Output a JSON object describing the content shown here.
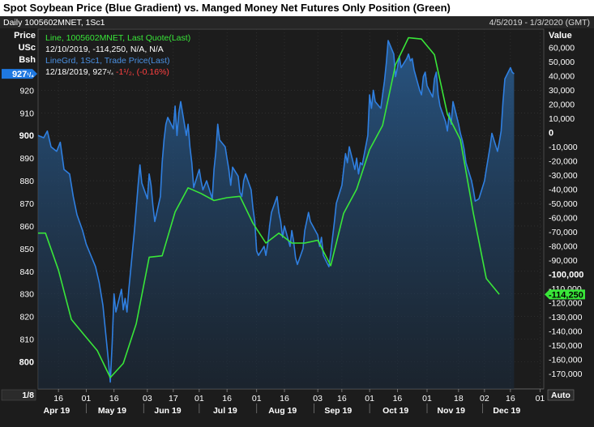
{
  "page_title": "Spot Soybean Price (Blue Gradient) vs. Manged Money Net Futures Only Position (Green)",
  "header": {
    "left": "Daily 1005602MNET, 1Sc1",
    "right": "4/5/2019 - 1/3/2020 (GMT)"
  },
  "left_axis": {
    "label_line1": "Price",
    "label_line2": "USc",
    "label_line3": "Bsh"
  },
  "right_axis": {
    "label": "Value"
  },
  "legend": [
    {
      "text": "Line, 1005602MNET, Last Quote(Last)",
      "color": "#39e639"
    },
    {
      "text": "12/10/2019, -114,250, N/A, N/A",
      "color": "#ffffff"
    },
    {
      "text": "LineGrd, 1Sc1, Trade Price(Last)",
      "color": "#4a90e2"
    },
    {
      "text_date": "12/18/2019, 927",
      "text_frac": "¹/₄",
      "text_chg": " -1¹/₂, (-0.16%)",
      "color_date": "#ffffff",
      "color_chg": "#ff4040"
    }
  ],
  "last_price_badge": {
    "main": "927",
    "frac": "¹/₄"
  },
  "last_value_badge": "-114,250",
  "corner_left": "1/8",
  "corner_right": "Auto",
  "colors": {
    "background": "#1c1c1c",
    "price_line": "#2f7fe0",
    "price_fill": "#1f3f63",
    "position_line": "#39e639",
    "grid": "#3a3a3a",
    "axis_text": "#ffffff"
  },
  "chart_data": {
    "type": "line",
    "x_domain": [
      "2019-04-05",
      "2020-01-03"
    ],
    "x_day_labels": [
      {
        "label": "16",
        "date": "2019-04-16"
      },
      {
        "label": "01",
        "date": "2019-05-01"
      },
      {
        "label": "16",
        "date": "2019-05-16"
      },
      {
        "label": "03",
        "date": "2019-06-03"
      },
      {
        "label": "17",
        "date": "2019-06-17"
      },
      {
        "label": "01",
        "date": "2019-07-01"
      },
      {
        "label": "16",
        "date": "2019-07-16"
      },
      {
        "label": "01",
        "date": "2019-08-01"
      },
      {
        "label": "16",
        "date": "2019-08-16"
      },
      {
        "label": "03",
        "date": "2019-09-03"
      },
      {
        "label": "16",
        "date": "2019-09-16"
      },
      {
        "label": "01",
        "date": "2019-10-01"
      },
      {
        "label": "16",
        "date": "2019-10-16"
      },
      {
        "label": "01",
        "date": "2019-11-01"
      },
      {
        "label": "18",
        "date": "2019-11-18"
      },
      {
        "label": "02",
        "date": "2019-12-02"
      },
      {
        "label": "16",
        "date": "2019-12-16"
      },
      {
        "label": "01",
        "date": "2020-01-01"
      }
    ],
    "x_month_labels": [
      {
        "label": "Apr 19",
        "date": "2019-04-15"
      },
      {
        "label": "May 19",
        "date": "2019-05-15"
      },
      {
        "label": "Jun 19",
        "date": "2019-06-14"
      },
      {
        "label": "Jul 19",
        "date": "2019-07-15"
      },
      {
        "label": "Aug 19",
        "date": "2019-08-15"
      },
      {
        "label": "Sep 19",
        "date": "2019-09-14"
      },
      {
        "label": "Oct 19",
        "date": "2019-10-15"
      },
      {
        "label": "Nov 19",
        "date": "2019-11-14"
      },
      {
        "label": "Dec 19",
        "date": "2019-12-14"
      }
    ],
    "y_left": {
      "min": 788,
      "max": 947,
      "ticks": [
        800,
        810,
        820,
        830,
        840,
        850,
        860,
        870,
        880,
        890,
        900,
        910,
        920
      ],
      "bold_ticks": [
        800,
        900
      ]
    },
    "y_right": {
      "min": -181000,
      "max": 73000,
      "ticks": [
        {
          "value": 60000,
          "label": "60,000"
        },
        {
          "value": 50000,
          "label": "50,000"
        },
        {
          "value": 40000,
          "label": "40,000"
        },
        {
          "value": 30000,
          "label": "30,000"
        },
        {
          "value": 20000,
          "label": "20,000"
        },
        {
          "value": 10000,
          "label": "10,000"
        },
        {
          "value": 0,
          "label": "0"
        },
        {
          "value": -10000,
          "label": "-10,000"
        },
        {
          "value": -20000,
          "label": "-20,000"
        },
        {
          "value": -30000,
          "label": "-30,000"
        },
        {
          "value": -40000,
          "label": "-40,000"
        },
        {
          "value": -50000,
          "label": "-50,000"
        },
        {
          "value": -60000,
          "label": "-60,000"
        },
        {
          "value": -70000,
          "label": "-70,000"
        },
        {
          "value": -80000,
          "label": "-80,000"
        },
        {
          "value": -90000,
          "label": "-90,000"
        },
        {
          "value": -100000,
          "label": "-100,000"
        },
        {
          "value": -110000,
          "label": "-110,000"
        },
        {
          "value": -120000,
          "label": "-120,000"
        },
        {
          "value": -130000,
          "label": "-130,000"
        },
        {
          "value": -140000,
          "label": "-140,000"
        },
        {
          "value": -150000,
          "label": "-150,000"
        },
        {
          "value": -160000,
          "label": "-160,000"
        },
        {
          "value": -170000,
          "label": "-170,000"
        }
      ],
      "bold_ticks": [
        0,
        -100000
      ]
    },
    "series": [
      {
        "name": "LineGrd, 1Sc1, Trade Price(Last)",
        "axis": "left",
        "points": [
          [
            "2019-04-05",
            900
          ],
          [
            "2019-04-08",
            899
          ],
          [
            "2019-04-10",
            902
          ],
          [
            "2019-04-12",
            895
          ],
          [
            "2019-04-15",
            893
          ],
          [
            "2019-04-17",
            897
          ],
          [
            "2019-04-19",
            885
          ],
          [
            "2019-04-22",
            883
          ],
          [
            "2019-04-24",
            873
          ],
          [
            "2019-04-26",
            865
          ],
          [
            "2019-04-29",
            858
          ],
          [
            "2019-05-01",
            852
          ],
          [
            "2019-05-03",
            848
          ],
          [
            "2019-05-06",
            842
          ],
          [
            "2019-05-08",
            835
          ],
          [
            "2019-05-10",
            825
          ],
          [
            "2019-05-13",
            800
          ],
          [
            "2019-05-14",
            791
          ],
          [
            "2019-05-15",
            808
          ],
          [
            "2019-05-16",
            830
          ],
          [
            "2019-05-17",
            822
          ],
          [
            "2019-05-20",
            832
          ],
          [
            "2019-05-21",
            823
          ],
          [
            "2019-05-22",
            828
          ],
          [
            "2019-05-23",
            822
          ],
          [
            "2019-05-24",
            832
          ],
          [
            "2019-05-27",
            858
          ],
          [
            "2019-05-29",
            878
          ],
          [
            "2019-05-30",
            887
          ],
          [
            "2019-05-31",
            879
          ],
          [
            "2019-06-03",
            872
          ],
          [
            "2019-06-04",
            883
          ],
          [
            "2019-06-05",
            878
          ],
          [
            "2019-06-06",
            869
          ],
          [
            "2019-06-07",
            862
          ],
          [
            "2019-06-10",
            873
          ],
          [
            "2019-06-11",
            888
          ],
          [
            "2019-06-12",
            898
          ],
          [
            "2019-06-13",
            905
          ],
          [
            "2019-06-14",
            908
          ],
          [
            "2019-06-17",
            903
          ],
          [
            "2019-06-18",
            913
          ],
          [
            "2019-06-19",
            900
          ],
          [
            "2019-06-20",
            910
          ],
          [
            "2019-06-21",
            915
          ],
          [
            "2019-06-24",
            900
          ],
          [
            "2019-06-25",
            905
          ],
          [
            "2019-06-26",
            895
          ],
          [
            "2019-06-27",
            888
          ],
          [
            "2019-06-28",
            877
          ],
          [
            "2019-07-01",
            885
          ],
          [
            "2019-07-02",
            880
          ],
          [
            "2019-07-03",
            876
          ],
          [
            "2019-07-05",
            880
          ],
          [
            "2019-07-08",
            872
          ],
          [
            "2019-07-09",
            885
          ],
          [
            "2019-07-10",
            893
          ],
          [
            "2019-07-11",
            905
          ],
          [
            "2019-07-12",
            898
          ],
          [
            "2019-07-15",
            895
          ],
          [
            "2019-07-16",
            890
          ],
          [
            "2019-07-17",
            885
          ],
          [
            "2019-07-18",
            878
          ],
          [
            "2019-07-19",
            886
          ],
          [
            "2019-07-22",
            882
          ],
          [
            "2019-07-23",
            875
          ],
          [
            "2019-07-24",
            873
          ],
          [
            "2019-07-25",
            880
          ],
          [
            "2019-07-26",
            883
          ],
          [
            "2019-07-29",
            876
          ],
          [
            "2019-07-30",
            868
          ],
          [
            "2019-07-31",
            862
          ],
          [
            "2019-08-01",
            849
          ],
          [
            "2019-08-02",
            847
          ],
          [
            "2019-08-05",
            851
          ],
          [
            "2019-08-06",
            847
          ],
          [
            "2019-08-07",
            852
          ],
          [
            "2019-08-08",
            860
          ],
          [
            "2019-08-09",
            866
          ],
          [
            "2019-08-12",
            873
          ],
          [
            "2019-08-13",
            866
          ],
          [
            "2019-08-14",
            862
          ],
          [
            "2019-08-15",
            855
          ],
          [
            "2019-08-16",
            860
          ],
          [
            "2019-08-19",
            851
          ],
          [
            "2019-08-20",
            858
          ],
          [
            "2019-08-21",
            853
          ],
          [
            "2019-08-22",
            846
          ],
          [
            "2019-08-23",
            843
          ],
          [
            "2019-08-26",
            850
          ],
          [
            "2019-08-27",
            858
          ],
          [
            "2019-08-28",
            862
          ],
          [
            "2019-08-29",
            866
          ],
          [
            "2019-08-30",
            862
          ],
          [
            "2019-09-03",
            856
          ],
          [
            "2019-09-04",
            851
          ],
          [
            "2019-09-05",
            855
          ],
          [
            "2019-09-06",
            847
          ],
          [
            "2019-09-09",
            842
          ],
          [
            "2019-09-10",
            848
          ],
          [
            "2019-09-11",
            855
          ],
          [
            "2019-09-12",
            862
          ],
          [
            "2019-09-13",
            870
          ],
          [
            "2019-09-16",
            878
          ],
          [
            "2019-09-17",
            885
          ],
          [
            "2019-09-18",
            892
          ],
          [
            "2019-09-19",
            888
          ],
          [
            "2019-09-20",
            895
          ],
          [
            "2019-09-23",
            885
          ],
          [
            "2019-09-24",
            890
          ],
          [
            "2019-09-25",
            883
          ],
          [
            "2019-09-26",
            888
          ],
          [
            "2019-09-27",
            887
          ],
          [
            "2019-09-30",
            900
          ],
          [
            "2019-10-01",
            918
          ],
          [
            "2019-10-02",
            912
          ],
          [
            "2019-10-03",
            920
          ],
          [
            "2019-10-04",
            915
          ],
          [
            "2019-10-07",
            912
          ],
          [
            "2019-10-08",
            918
          ],
          [
            "2019-10-09",
            924
          ],
          [
            "2019-10-10",
            932
          ],
          [
            "2019-10-11",
            942
          ],
          [
            "2019-10-14",
            936
          ],
          [
            "2019-10-15",
            926
          ],
          [
            "2019-10-16",
            930
          ],
          [
            "2019-10-17",
            935
          ],
          [
            "2019-10-18",
            930
          ],
          [
            "2019-10-21",
            934
          ],
          [
            "2019-10-22",
            936
          ],
          [
            "2019-10-23",
            933
          ],
          [
            "2019-10-24",
            934
          ],
          [
            "2019-10-25",
            929
          ],
          [
            "2019-10-28",
            920
          ],
          [
            "2019-10-29",
            918
          ],
          [
            "2019-10-30",
            926
          ],
          [
            "2019-10-31",
            928
          ],
          [
            "2019-11-01",
            922
          ],
          [
            "2019-11-04",
            917
          ],
          [
            "2019-11-05",
            925
          ],
          [
            "2019-11-06",
            928
          ],
          [
            "2019-11-07",
            918
          ],
          [
            "2019-11-08",
            913
          ],
          [
            "2019-11-11",
            906
          ],
          [
            "2019-11-12",
            902
          ],
          [
            "2019-11-13",
            910
          ],
          [
            "2019-11-14",
            905
          ],
          [
            "2019-11-15",
            915
          ],
          [
            "2019-11-18",
            905
          ],
          [
            "2019-11-19",
            901
          ],
          [
            "2019-11-20",
            898
          ],
          [
            "2019-11-21",
            894
          ],
          [
            "2019-11-22",
            888
          ],
          [
            "2019-11-25",
            880
          ],
          [
            "2019-11-26",
            876
          ],
          [
            "2019-11-27",
            871
          ],
          [
            "2019-11-29",
            872
          ],
          [
            "2019-12-02",
            880
          ],
          [
            "2019-12-03",
            885
          ],
          [
            "2019-12-04",
            890
          ],
          [
            "2019-12-05",
            895
          ],
          [
            "2019-12-06",
            901
          ],
          [
            "2019-12-09",
            893
          ],
          [
            "2019-12-10",
            897
          ],
          [
            "2019-12-11",
            902
          ],
          [
            "2019-12-12",
            915
          ],
          [
            "2019-12-13",
            925
          ],
          [
            "2019-12-16",
            930
          ],
          [
            "2019-12-17",
            928
          ],
          [
            "2019-12-18",
            927.25
          ]
        ]
      },
      {
        "name": "Line, 1005602MNET, Last Quote(Last)",
        "axis": "right",
        "points": [
          [
            "2019-04-05",
            -71000
          ],
          [
            "2019-04-09",
            -71000
          ],
          [
            "2019-04-16",
            -97000
          ],
          [
            "2019-04-23",
            -132000
          ],
          [
            "2019-04-30",
            -143000
          ],
          [
            "2019-05-07",
            -154000
          ],
          [
            "2019-05-14",
            -173000
          ],
          [
            "2019-05-21",
            -163000
          ],
          [
            "2019-05-28",
            -135000
          ],
          [
            "2019-06-04",
            -88000
          ],
          [
            "2019-06-11",
            -87000
          ],
          [
            "2019-06-18",
            -56000
          ],
          [
            "2019-06-25",
            -39000
          ],
          [
            "2019-07-02",
            -43000
          ],
          [
            "2019-07-09",
            -48000
          ],
          [
            "2019-07-16",
            -46000
          ],
          [
            "2019-07-23",
            -45000
          ],
          [
            "2019-07-30",
            -64000
          ],
          [
            "2019-08-06",
            -78000
          ],
          [
            "2019-08-13",
            -71000
          ],
          [
            "2019-08-20",
            -78000
          ],
          [
            "2019-08-27",
            -78000
          ],
          [
            "2019-09-03",
            -76000
          ],
          [
            "2019-09-10",
            -94000
          ],
          [
            "2019-09-17",
            -57000
          ],
          [
            "2019-09-24",
            -40000
          ],
          [
            "2019-10-01",
            -12000
          ],
          [
            "2019-10-08",
            5000
          ],
          [
            "2019-10-15",
            48000
          ],
          [
            "2019-10-22",
            67000
          ],
          [
            "2019-10-29",
            66000
          ],
          [
            "2019-11-05",
            55000
          ],
          [
            "2019-11-12",
            13000
          ],
          [
            "2019-11-19",
            -5000
          ],
          [
            "2019-11-26",
            -57000
          ],
          [
            "2019-12-03",
            -103000
          ],
          [
            "2019-12-10",
            -114250
          ]
        ]
      }
    ]
  }
}
